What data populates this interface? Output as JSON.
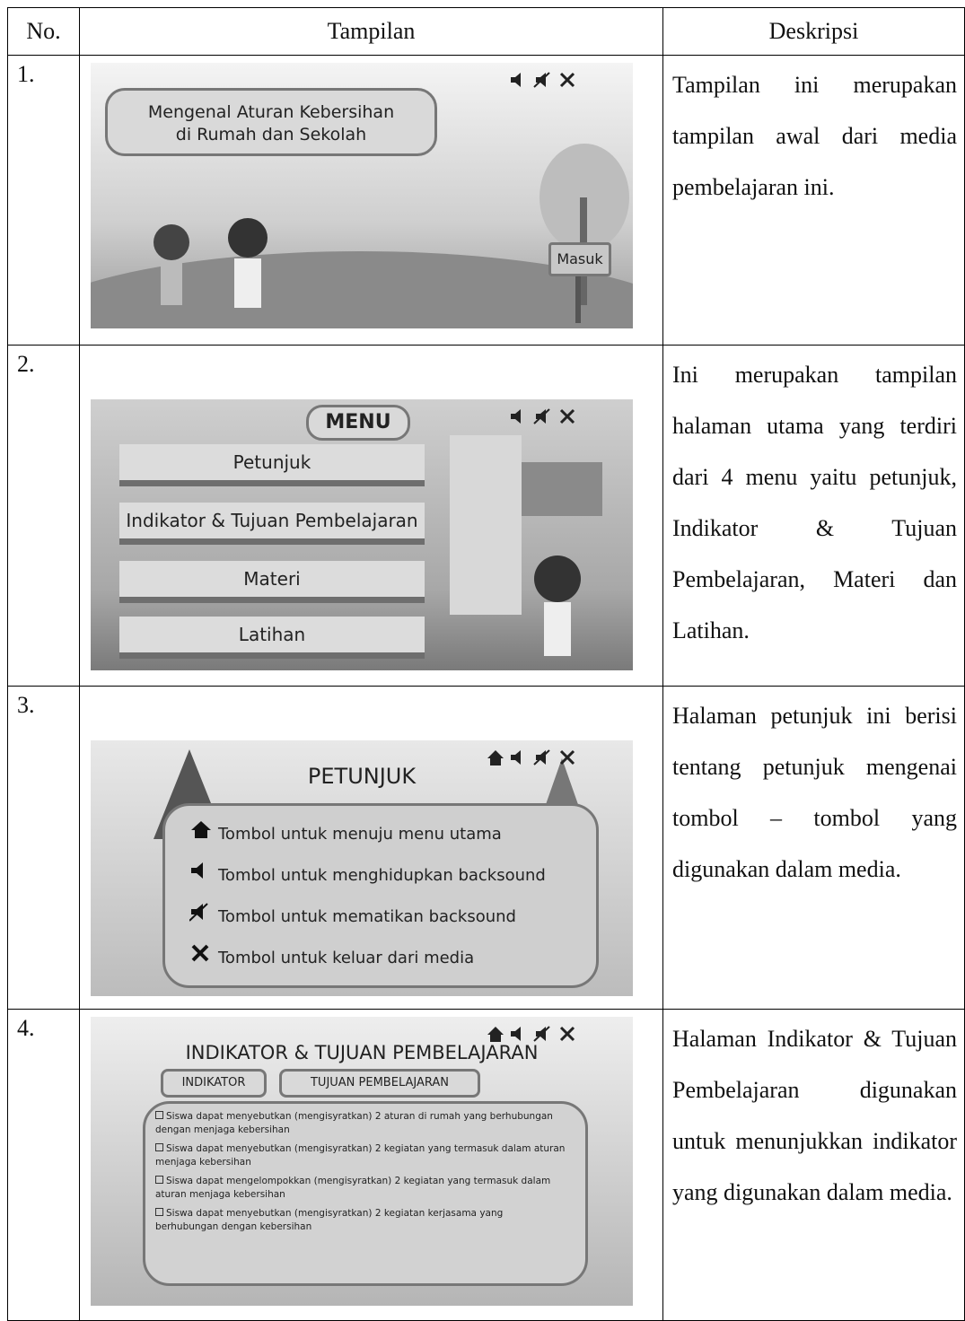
{
  "table": {
    "header": [
      "No.",
      "Tampilan",
      "Deskripsi"
    ],
    "rows": [
      {
        "no": "1.",
        "screen": {
          "title_lines": [
            "Mengenal Aturan Kebersihan",
            "di Rumah dan Sekolah"
          ],
          "button": "Masuk"
        },
        "description": "Tampilan ini merupakan tampilan awal dari media pembelajaran ini."
      },
      {
        "no": "2.",
        "screen": {
          "title": "MENU",
          "buttons": [
            "Petunjuk",
            "Indikator & Tujuan Pembelajaran",
            "Materi",
            "Latihan"
          ]
        },
        "description": "Ini merupakan tampilan halaman utama yang terdiri dari 4 menu yaitu petunjuk, Indikator & Tujuan Pembelajaran, Materi dan Latihan."
      },
      {
        "no": "3.",
        "screen": {
          "title": "PETUNJUK",
          "items": [
            "Tombol untuk menuju menu utama",
            "Tombol untuk menghidupkan backsound",
            "Tombol untuk mematikan backsound",
            "Tombol untuk keluar dari media"
          ]
        },
        "description": "Halaman petunjuk ini berisi tentang petunjuk mengenai tombol – tombol yang digunakan dalam media."
      },
      {
        "no": "4.",
        "screen": {
          "title": "INDIKATOR & TUJUAN PEMBELAJARAN",
          "tabs": [
            "INDIKATOR",
            "TUJUAN PEMBELAJARAN"
          ],
          "items": [
            "Siswa dapat menyebutkan (mengisyratkan) 2 aturan di rumah yang berhubungan dengan menjaga kebersihan",
            "Siswa dapat menyebutkan (mengisyratkan) 2 kegiatan yang termasuk dalam aturan menjaga kebersihan",
            "Siswa dapat mengelompokkan (mengisyratkan) 2 kegiatan yang termasuk dalam aturan menjaga kebersihan",
            "Siswa dapat menyebutkan (mengisyratkan) 2 kegiatan kerjasama yang berhubungan dengan kebersihan"
          ]
        },
        "description": "Halaman Indikator & Tujuan Pembelajaran digunakan untuk menunjukkan indikator yang digunakan dalam media."
      }
    ]
  }
}
